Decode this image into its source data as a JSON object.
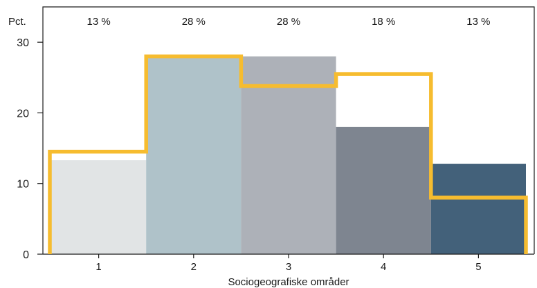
{
  "chart_data": {
    "type": "bar",
    "unit_label": "Pct.",
    "xlabel": "Sociogeografiske områder",
    "categories": [
      "1",
      "2",
      "3",
      "4",
      "5"
    ],
    "top_labels": [
      "13 %",
      "28 %",
      "28 %",
      "18 %",
      "13 %"
    ],
    "ylim": [
      0,
      35
    ],
    "yticks": [
      0,
      10,
      20,
      30
    ],
    "grid": false,
    "series": [
      {
        "type": "bar",
        "values": [
          13.3,
          28.0,
          28.0,
          18.0,
          12.8
        ],
        "colors": [
          "#e1e4e5",
          "#afc2c9",
          "#adb1b8",
          "#7e8590",
          "#43617a"
        ]
      },
      {
        "type": "step-line",
        "values": [
          14.5,
          28.0,
          23.8,
          25.5,
          8.0
        ],
        "color": "#f6bc2f"
      }
    ]
  }
}
